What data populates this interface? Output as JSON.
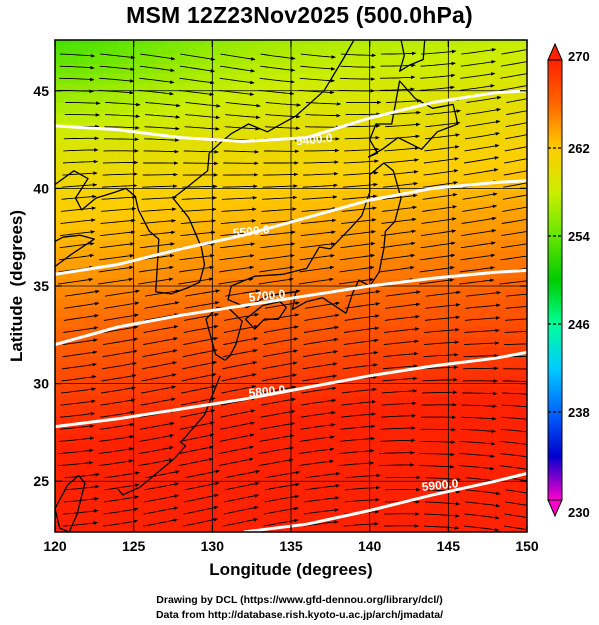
{
  "title": "MSM 12Z23Nov2025 (500.0hPa)",
  "xlabel": "Longitude (degrees)",
  "ylabel": "Latitude  (degrees)",
  "credits": {
    "line1": "Drawing by DCL (https://www.gfd-dennou.org/library/dcl/)",
    "line2": "Data from http://database.rish.kyoto-u.ac.jp/arch/jmadata/"
  },
  "chart_data": {
    "type": "heatmap",
    "x_ticks": [
      "120",
      "125",
      "130",
      "135",
      "140",
      "145",
      "150"
    ],
    "y_ticks": [
      "25",
      "30",
      "35",
      "40",
      "45"
    ],
    "xlim": [
      120,
      150
    ],
    "ylim": [
      22.4,
      47.6
    ],
    "grid": true,
    "colorbar": {
      "range": [
        230,
        270
      ],
      "tick_labels": [
        "270",
        "262",
        "254",
        "246",
        "238",
        "230"
      ],
      "colors": [
        "#ff00cc",
        "#0000cc",
        "#0066ff",
        "#00ccff",
        "#00ff99",
        "#00cc00",
        "#66e600",
        "#ccee00",
        "#ffcc00",
        "#ff6600",
        "#ff2200"
      ]
    },
    "contours": [
      {
        "label": "5400.0",
        "label_lon": 136.5,
        "label_lat": 42.3,
        "points": [
          [
            120,
            43.2
          ],
          [
            124,
            43.0
          ],
          [
            128,
            42.6
          ],
          [
            132,
            42.4
          ],
          [
            136,
            42.6
          ],
          [
            140,
            43.6
          ],
          [
            144,
            44.4
          ],
          [
            148,
            44.9
          ],
          [
            150,
            45.0
          ]
        ]
      },
      {
        "label": "5500.0",
        "label_lon": 132.5,
        "label_lat": 37.6,
        "points": [
          [
            120,
            35.6
          ],
          [
            124,
            36.1
          ],
          [
            128,
            36.9
          ],
          [
            132,
            37.6
          ],
          [
            136,
            38.5
          ],
          [
            140,
            39.4
          ],
          [
            144,
            40.0
          ],
          [
            148,
            40.3
          ],
          [
            150,
            40.4
          ]
        ]
      },
      {
        "label": "5700.0",
        "label_lon": 133.5,
        "label_lat": 34.3,
        "points": [
          [
            120,
            32.0
          ],
          [
            124,
            32.9
          ],
          [
            128,
            33.5
          ],
          [
            132,
            34.0
          ],
          [
            136,
            34.5
          ],
          [
            140,
            35.0
          ],
          [
            144,
            35.4
          ],
          [
            148,
            35.7
          ],
          [
            150,
            35.8
          ]
        ]
      },
      {
        "label": "5800.0",
        "label_lon": 133.5,
        "label_lat": 29.4,
        "points": [
          [
            120,
            27.8
          ],
          [
            124,
            28.2
          ],
          [
            128,
            28.7
          ],
          [
            132,
            29.2
          ],
          [
            136,
            29.8
          ],
          [
            140,
            30.4
          ],
          [
            144,
            30.9
          ],
          [
            148,
            31.3
          ],
          [
            150,
            31.6
          ]
        ]
      },
      {
        "label": "5900.0",
        "label_lon": 144.5,
        "label_lat": 24.6,
        "points": [
          [
            132,
            22.4
          ],
          [
            136,
            22.8
          ],
          [
            140,
            23.5
          ],
          [
            144,
            24.3
          ],
          [
            148,
            25.0
          ],
          [
            150,
            25.4
          ]
        ]
      }
    ]
  }
}
